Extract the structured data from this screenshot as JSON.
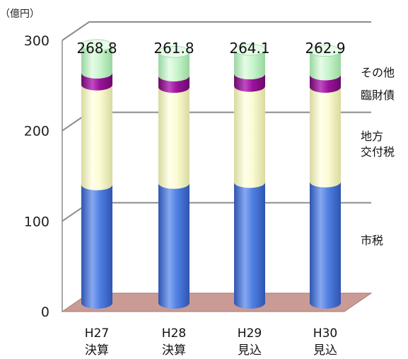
{
  "chart_data": {
    "type": "bar",
    "stacked": true,
    "unit_label": "（億円）",
    "yticks": [
      0,
      100,
      200,
      300
    ],
    "ylim": [
      0,
      300
    ],
    "grid": true,
    "categories": [
      {
        "line1": "H27",
        "line2": "決算"
      },
      {
        "line1": "H28",
        "line2": "決算"
      },
      {
        "line1": "H29",
        "line2": "見込"
      },
      {
        "line1": "H30",
        "line2": "見込"
      }
    ],
    "totals": [
      "268.8",
      "261.8",
      "264.1",
      "262.9"
    ],
    "series": [
      {
        "name": "市税",
        "values": [
          123.5,
          125.0,
          126.0,
          126.5
        ],
        "color": "#4f7fe3",
        "color_dark": "#2f55b0",
        "color_light": "#86a8f0"
      },
      {
        "name": "地方交付税",
        "values": [
          104.0,
          100.0,
          100.1,
          98.6
        ],
        "color": "#fbfbd2",
        "color_dark": "#d9d9a0",
        "color_light": "#ffffec"
      },
      {
        "name": "臨財債",
        "values": [
          12.5,
          12.0,
          13.0,
          13.0
        ],
        "color": "#9b119b",
        "color_dark": "#6a0a6a",
        "color_light": "#c04ac0"
      },
      {
        "name": "その他",
        "values": [
          28.8,
          24.8,
          25.0,
          24.8
        ],
        "color": "#c8f5cc",
        "color_dark": "#98d6a0",
        "color_light": "#e6fbe8"
      }
    ],
    "side_labels": [
      {
        "series": "その他",
        "lines": [
          "その他"
        ]
      },
      {
        "series": "臨財債",
        "lines": [
          "臨財債"
        ]
      },
      {
        "series": "地方交付税",
        "lines": [
          "地方",
          "交付税"
        ]
      },
      {
        "series": "市税",
        "lines": [
          "市税"
        ]
      }
    ],
    "colors": {
      "gridline": "#8c8c8c",
      "floor": "#c99b94",
      "floor_edge": "#a87a73"
    }
  }
}
